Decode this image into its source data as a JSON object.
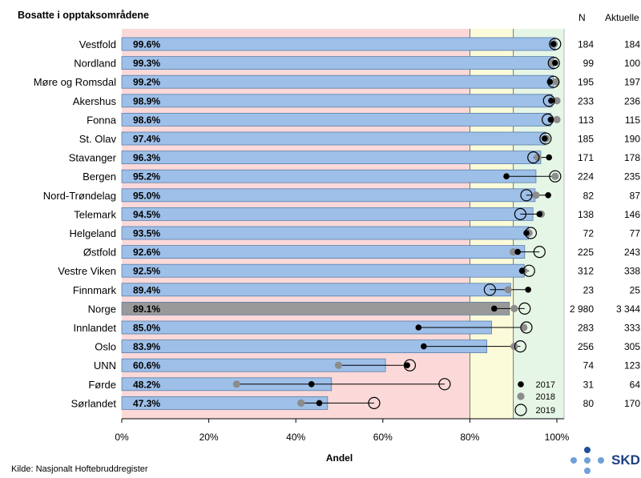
{
  "header": {
    "title": "Bosatte i opptaksområdene",
    "col_n": "N",
    "col_actual": "Aktuelle"
  },
  "footer": {
    "source": "Kilde: Nasjonalt Hoftebruddregister",
    "logo_text": "SKDE"
  },
  "colors": {
    "bar": "#9dbfe8",
    "bar_border": "#5b7fa8",
    "bar_highlight": "#999999",
    "zone_low": "#fbd9d9",
    "zone_mid": "#fcfbd9",
    "zone_high": "#e6f6e6",
    "dot_2017": "#000000",
    "dot_2018": "#8c8c8c",
    "logo": "#1f4f9b"
  },
  "chart_data": {
    "type": "bar",
    "orientation": "horizontal",
    "xlabel": "Andel",
    "xlim": [
      0,
      100
    ],
    "xticks": [
      "0%",
      "20%",
      "40%",
      "60%",
      "80%",
      "100%"
    ],
    "zones": [
      {
        "from": 0,
        "to": 80,
        "level": "low"
      },
      {
        "from": 80,
        "to": 90,
        "level": "mid"
      },
      {
        "from": 90,
        "to": 100,
        "level": "high"
      }
    ],
    "legend": {
      "position": "bottom-right",
      "entries": [
        "2017",
        "2018",
        "2019"
      ]
    },
    "rows": [
      {
        "name": "Vestfold",
        "label": "99.6%",
        "value": 99.6,
        "y2017": 99.2,
        "y2018": 99.4,
        "y2019": 99.6,
        "n": "184",
        "actual": "184",
        "highlight": false
      },
      {
        "name": "Nordland",
        "label": "99.3%",
        "value": 99.3,
        "y2017": 99.6,
        "y2018": 98.9,
        "y2019": 99.3,
        "n": "99",
        "actual": "100",
        "highlight": false
      },
      {
        "name": "Møre og Romsdal",
        "label": "99.2%",
        "value": 99.2,
        "y2017": 98.4,
        "y2018": 99.8,
        "y2019": 99.2,
        "n": "195",
        "actual": "197",
        "highlight": false
      },
      {
        "name": "Akershus",
        "label": "98.9%",
        "value": 98.9,
        "y2017": 98.7,
        "y2018": 100,
        "y2019": 98.2,
        "n": "233",
        "actual": "236",
        "highlight": false
      },
      {
        "name": "Fonna",
        "label": "98.6%",
        "value": 98.6,
        "y2017": 98.6,
        "y2018": 100,
        "y2019": 97.9,
        "n": "113",
        "actual": "115",
        "highlight": false
      },
      {
        "name": "St. Olav",
        "label": "97.4%",
        "value": 97.4,
        "y2017": 97.2,
        "y2018": 97.6,
        "y2019": 97.4,
        "n": "185",
        "actual": "190",
        "highlight": false
      },
      {
        "name": "Stavanger",
        "label": "96.3%",
        "value": 96.3,
        "y2017": 98.2,
        "y2018": 95.6,
        "y2019": 94.6,
        "n": "171",
        "actual": "178",
        "highlight": false
      },
      {
        "name": "Bergen",
        "label": "95.2%",
        "value": 95.2,
        "y2017": 88.4,
        "y2018": 99.6,
        "y2019": 99.6,
        "n": "224",
        "actual": "235",
        "highlight": false
      },
      {
        "name": "Nord-Trøndelag",
        "label": "95.0%",
        "value": 95.0,
        "y2017": 98.0,
        "y2018": 95.2,
        "y2019": 93.0,
        "n": "82",
        "actual": "87",
        "highlight": false
      },
      {
        "name": "Telemark",
        "label": "94.5%",
        "value": 94.5,
        "y2017": 96.0,
        "y2018": 96.4,
        "y2019": 91.6,
        "n": "138",
        "actual": "146",
        "highlight": false
      },
      {
        "name": "Helgeland",
        "label": "93.5%",
        "value": 93.5,
        "y2017": 93.0,
        "y2018": 93.6,
        "y2019": 94.0,
        "n": "72",
        "actual": "77",
        "highlight": false
      },
      {
        "name": "Østfold",
        "label": "92.6%",
        "value": 92.6,
        "y2017": 91.0,
        "y2018": 90.0,
        "y2019": 96.0,
        "n": "225",
        "actual": "243",
        "highlight": false
      },
      {
        "name": "Vestre Viken",
        "label": "92.5%",
        "value": 92.5,
        "y2017": 92.0,
        "y2018": 92.4,
        "y2019": 93.6,
        "n": "312",
        "actual": "338",
        "highlight": false
      },
      {
        "name": "Finnmark",
        "label": "89.4%",
        "value": 89.4,
        "y2017": 93.4,
        "y2018": 88.8,
        "y2019": 84.6,
        "n": "23",
        "actual": "25",
        "highlight": false
      },
      {
        "name": "Norge",
        "label": "89.1%",
        "value": 89.1,
        "y2017": 85.6,
        "y2018": 90.2,
        "y2019": 92.6,
        "n": "2 980",
        "actual": "3 344",
        "highlight": true
      },
      {
        "name": "Innlandet",
        "label": "85.0%",
        "value": 85.0,
        "y2017": 68.2,
        "y2018": 92.4,
        "y2019": 93.0,
        "n": "283",
        "actual": "333",
        "highlight": false
      },
      {
        "name": "Oslo",
        "label": "83.9%",
        "value": 83.9,
        "y2017": 69.4,
        "y2018": 90.2,
        "y2019": 91.6,
        "n": "256",
        "actual": "305",
        "highlight": false
      },
      {
        "name": "UNN",
        "label": "60.6%",
        "value": 60.6,
        "y2017": 65.6,
        "y2018": 49.8,
        "y2019": 66.2,
        "n": "74",
        "actual": "123",
        "highlight": false
      },
      {
        "name": "Førde",
        "label": "48.2%",
        "value": 48.2,
        "y2017": 43.6,
        "y2018": 26.4,
        "y2019": 74.2,
        "n": "31",
        "actual": "64",
        "highlight": false
      },
      {
        "name": "Sørlandet",
        "label": "47.3%",
        "value": 47.3,
        "y2017": 45.4,
        "y2018": 41.2,
        "y2019": 58.0,
        "n": "80",
        "actual": "170",
        "highlight": false
      }
    ]
  }
}
